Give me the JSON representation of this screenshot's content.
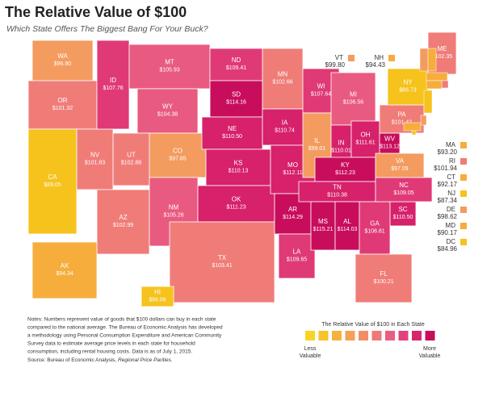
{
  "header": {
    "title": "The Relative Value of $100",
    "subtitle": "Which State Offers The Biggest Bang For Your Buck?"
  },
  "states": [
    {
      "abbr": "WA",
      "value": "$96.90",
      "color": "#f49b5f"
    },
    {
      "abbr": "OR",
      "value": "$101.32",
      "color": "#f07c78"
    },
    {
      "abbr": "CA",
      "value": "$89.05",
      "color": "#f6c21c"
    },
    {
      "abbr": "NV",
      "value": "$101.83",
      "color": "#f07c78"
    },
    {
      "abbr": "ID",
      "value": "$107.76",
      "color": "#e03a76"
    },
    {
      "abbr": "MT",
      "value": "$105.93",
      "color": "#e95a80"
    },
    {
      "abbr": "WY",
      "value": "$104.38",
      "color": "#e95a80"
    },
    {
      "abbr": "UT",
      "value": "$102.88",
      "color": "#f07c78"
    },
    {
      "abbr": "CO",
      "value": "$97.85",
      "color": "#f49b5f"
    },
    {
      "abbr": "AZ",
      "value": "$102.99",
      "color": "#f07c78"
    },
    {
      "abbr": "NM",
      "value": "$105.26",
      "color": "#e95a80"
    },
    {
      "abbr": "ND",
      "value": "$109.41",
      "color": "#e03a76"
    },
    {
      "abbr": "SD",
      "value": "$114.16",
      "color": "#c80d5c"
    },
    {
      "abbr": "NE",
      "value": "$110.50",
      "color": "#d7216a"
    },
    {
      "abbr": "KS",
      "value": "$110.13",
      "color": "#d7216a"
    },
    {
      "abbr": "OK",
      "value": "$111.23",
      "color": "#d7216a"
    },
    {
      "abbr": "TX",
      "value": "$103.41",
      "color": "#f07c78"
    },
    {
      "abbr": "MN",
      "value": "$102.66",
      "color": "#f07c78"
    },
    {
      "abbr": "IA",
      "value": "$110.74",
      "color": "#d7216a"
    },
    {
      "abbr": "MO",
      "value": "$112.11",
      "color": "#d7216a"
    },
    {
      "abbr": "AR",
      "value": "$114.29",
      "color": "#c80d5c"
    },
    {
      "abbr": "LA",
      "value": "$109.65",
      "color": "#e03a76"
    },
    {
      "abbr": "WI",
      "value": "$107.64",
      "color": "#e03a76"
    },
    {
      "abbr": "IL",
      "value": "$99.01",
      "color": "#f49b5f"
    },
    {
      "abbr": "MI",
      "value": "$106.56",
      "color": "#e95a80"
    },
    {
      "abbr": "IN",
      "value": "$110.01",
      "color": "#d7216a"
    },
    {
      "abbr": "OH",
      "value": "$111.61",
      "color": "#d7216a"
    },
    {
      "abbr": "KY",
      "value": "$112.23",
      "color": "#c80d5c"
    },
    {
      "abbr": "TN",
      "value": "$110.38",
      "color": "#d7216a"
    },
    {
      "abbr": "MS",
      "value": "$115.21",
      "color": "#c80d5c"
    },
    {
      "abbr": "AL",
      "value": "$114.03",
      "color": "#c80d5c"
    },
    {
      "abbr": "GA",
      "value": "$108.81",
      "color": "#e03a76"
    },
    {
      "abbr": "FL",
      "value": "$100.21",
      "color": "#f07c78"
    },
    {
      "abbr": "SC",
      "value": "$110.50",
      "color": "#d7216a"
    },
    {
      "abbr": "NC",
      "value": "$109.05",
      "color": "#e03a76"
    },
    {
      "abbr": "VA",
      "value": "$97.09",
      "color": "#f49b5f"
    },
    {
      "abbr": "WV",
      "value": "$113.12",
      "color": "#c80d5c"
    },
    {
      "abbr": "PA",
      "value": "$101.42",
      "color": "#f07c78"
    },
    {
      "abbr": "NY",
      "value": "$86.73",
      "color": "#f6c21c"
    },
    {
      "abbr": "ME",
      "value": "$102.35",
      "color": "#f07c78"
    },
    {
      "abbr": "AK",
      "value": "$94.34",
      "color": "#f6ad3c"
    },
    {
      "abbr": "HI",
      "value": "$86.06",
      "color": "#f6c21c"
    }
  ],
  "callouts": [
    {
      "abbr": "VT",
      "value": "$99.80",
      "color": "#f49b5f"
    },
    {
      "abbr": "NH",
      "value": "$94.43",
      "color": "#f6ad3c"
    },
    {
      "abbr": "MA",
      "value": "$93.20",
      "color": "#f6ad3c"
    },
    {
      "abbr": "RI",
      "value": "$101.94",
      "color": "#f07c78"
    },
    {
      "abbr": "CT",
      "value": "$92.17",
      "color": "#f6ad3c"
    },
    {
      "abbr": "NJ",
      "value": "$87.34",
      "color": "#f6c21c"
    },
    {
      "abbr": "DE",
      "value": "$98.62",
      "color": "#f49b5f"
    },
    {
      "abbr": "MD",
      "value": "$90.17",
      "color": "#f6ad3c"
    },
    {
      "abbr": "DC",
      "value": "$84.96",
      "color": "#f6c21c"
    }
  ],
  "notes": [
    "Notes: Numbers represent value of goods that $100 dollars can buy in each state",
    "compared to the national average. The Bureau of Economic Analysis has developed",
    "a methodology using Personal Consumption Expenditure and American Community",
    "Survey data to estimate average price levels in each state for household",
    "consumption, including rental housing costs. Data is as of July 1, 2015."
  ],
  "source": {
    "text": "Source: Bureau of Economic Analysis, ",
    "italic": "Regional Price Parities."
  },
  "legend": {
    "title": "The Relative Value of $100 in Each State",
    "colors": [
      "#f9d423",
      "#f7c32a",
      "#f6b23f",
      "#f4a155",
      "#f28d68",
      "#f07878",
      "#ea5d80",
      "#e2427a",
      "#d6266d",
      "#c80d5c"
    ],
    "low": [
      "Less",
      "Valuable"
    ],
    "high": [
      "More",
      "Valuable"
    ]
  }
}
